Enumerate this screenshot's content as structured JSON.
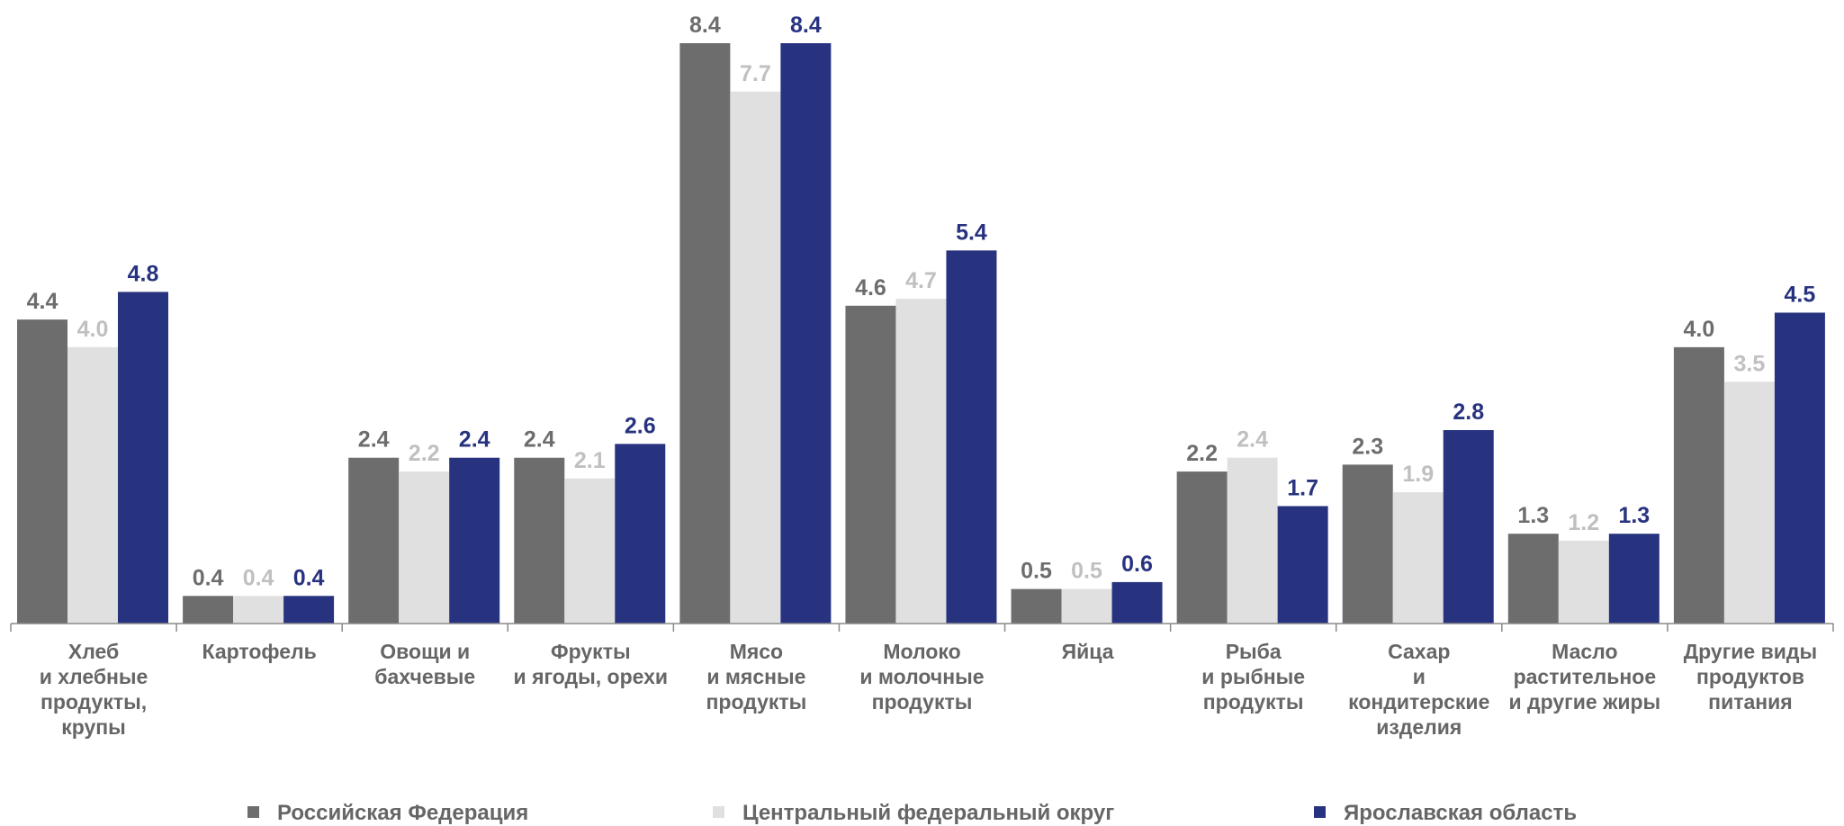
{
  "chart_data": {
    "type": "bar",
    "categories": [
      "Хлеб\nи хлебные\nпродукты,\nкрупы",
      "Картофель",
      "Овощи и\nбахчевые",
      "Фрукты\nи ягоды, орехи",
      "Мясо\nи мясные\nпродукты",
      "Молоко\nи молочные\nпродукты",
      "Яйца",
      "Рыба\nи рыбные\nпродукты",
      "Сахар\nи\nкондитерские\nизделия",
      "Масло\nрастительное\nи другие жиры",
      "Другие виды\nпродуктов\nпитания"
    ],
    "series": [
      {
        "name": "Российская Федерация",
        "color": "#6d6d6d",
        "label_color": "#6d6d6d",
        "values": [
          4.4,
          0.4,
          2.4,
          2.4,
          8.4,
          4.6,
          0.5,
          2.2,
          2.3,
          1.3,
          4.0
        ]
      },
      {
        "name": "Центральный федеральный округ",
        "color": "#e0e0e0",
        "label_color": "#c0c0c0",
        "values": [
          4.0,
          0.4,
          2.2,
          2.1,
          7.7,
          4.7,
          0.5,
          2.4,
          1.9,
          1.2,
          3.5
        ]
      },
      {
        "name": "Ярославская область",
        "color": "#283380",
        "label_color": "#283380",
        "values": [
          4.8,
          0.4,
          2.4,
          2.6,
          8.4,
          5.4,
          0.6,
          1.7,
          2.8,
          1.3,
          4.5
        ]
      }
    ],
    "title": "",
    "xlabel": "",
    "ylabel": "",
    "ylim": [
      0,
      8.4
    ],
    "grid": false,
    "legend": "bottom",
    "data_labels": true
  }
}
